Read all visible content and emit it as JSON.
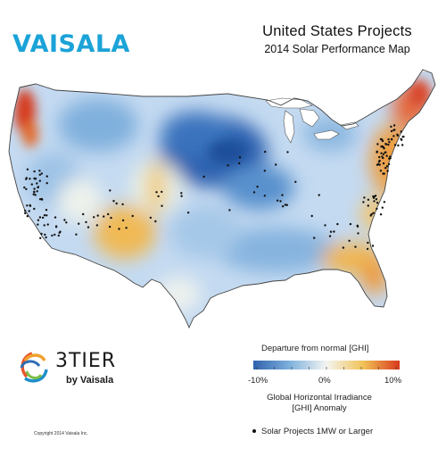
{
  "brand": {
    "name": "VAISALA",
    "color": "#1ba3d8"
  },
  "title": {
    "line1": "United States Projects",
    "line2": "2014 Solar Performance Map"
  },
  "partner": {
    "name": "3TIER",
    "tagline": "by Vaisala"
  },
  "legend": {
    "title": "Departure from normal [GHI]",
    "ticks": [
      "-10%",
      "0%",
      "10%"
    ],
    "colors": [
      "#2f62ad",
      "#7fb1dd",
      "#f4f5f2",
      "#f1c257",
      "#d83a1c"
    ],
    "description_line1": "Global Horizontal Irradiance",
    "description_line2": "[GHI] Anomaly",
    "projects_label": "Solar Projects 1MW or Larger"
  },
  "copyright": "Copyright 2014 Vaisala Inc."
}
